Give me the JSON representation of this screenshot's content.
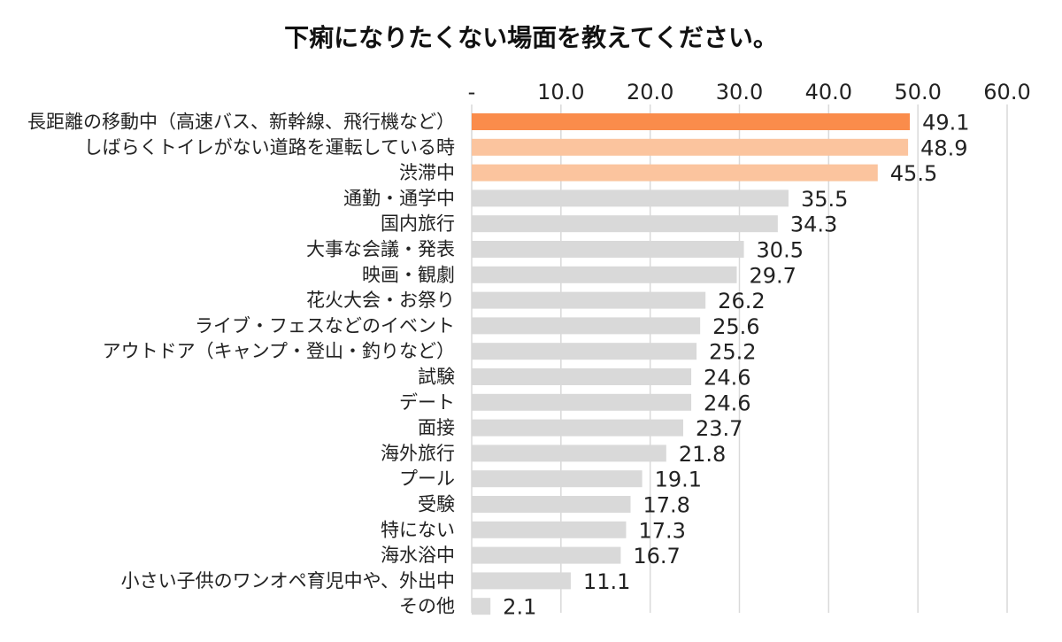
{
  "chart_data": {
    "type": "bar",
    "orientation": "horizontal",
    "title": "下痢になりたくない場面を教えてください。",
    "xlim": [
      0,
      60
    ],
    "x_ticks": [
      0,
      10,
      20,
      30,
      40,
      50,
      60
    ],
    "x_tick_labels": [
      "-",
      "10.0",
      "20.0",
      "30.0",
      "40.0",
      "50.0",
      "60.0"
    ],
    "x_axis_position": "top",
    "grid": true,
    "categories": [
      "長距離の移動中（高速バス、新幹線、飛行機など）",
      "しばらくトイレがない道路を運転している時",
      "渋滞中",
      "通勤・通学中",
      "国内旅行",
      "大事な会議・発表",
      "映画・観劇",
      "花火大会・お祭り",
      "ライブ・フェスなどのイベント",
      "アウトドア（キャンプ・登山・釣りなど）",
      "試験",
      "デート",
      "面接",
      "海外旅行",
      "プール",
      "受験",
      "特にない",
      "海水浴中",
      "小さい子供のワンオペ育児中や、外出中",
      "その他"
    ],
    "values": [
      49.1,
      48.9,
      45.5,
      35.5,
      34.3,
      30.5,
      29.7,
      26.2,
      25.6,
      25.2,
      24.6,
      24.6,
      23.7,
      21.8,
      19.1,
      17.8,
      17.3,
      16.7,
      11.1,
      2.1
    ],
    "value_labels": [
      "49.1",
      "48.9",
      "45.5",
      "35.5",
      "34.3",
      "30.5",
      "29.7",
      "26.2",
      "25.6",
      "25.2",
      "24.6",
      "24.6",
      "23.7",
      "21.8",
      "19.1",
      "17.8",
      "17.3",
      "16.7",
      "11.1",
      "2.1"
    ],
    "colors": {
      "top1": "#fa8c4b",
      "top2_3": "#fbc49e",
      "other": "#d9d9d9",
      "grid": "#d9d9d9",
      "text": "#222222"
    }
  }
}
